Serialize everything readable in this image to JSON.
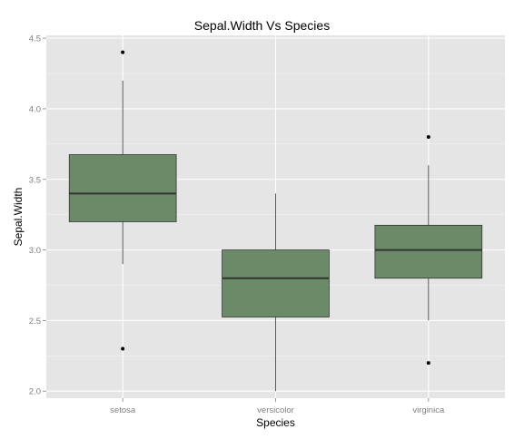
{
  "chart_data": {
    "type": "boxplot",
    "title": "Sepal.Width Vs Species",
    "xlabel": "Species",
    "ylabel": "Sepal.Width",
    "categories": [
      "setosa",
      "versicolor",
      "virginica"
    ],
    "ylim": [
      1.95,
      4.52
    ],
    "yticks": [
      2.0,
      2.5,
      3.0,
      3.5,
      4.0,
      4.5
    ],
    "ytick_labels": [
      "2.0",
      "2.5",
      "3.0",
      "3.5",
      "4.0",
      "4.5"
    ],
    "grid": true,
    "boxes": [
      {
        "category": "setosa",
        "lower_whisker": 2.9,
        "q1": 3.2,
        "median": 3.4,
        "q3": 3.675,
        "upper_whisker": 4.2,
        "outliers": [
          4.4,
          2.3
        ]
      },
      {
        "category": "versicolor",
        "lower_whisker": 2.0,
        "q1": 2.525,
        "median": 2.8,
        "q3": 3.0,
        "upper_whisker": 3.4,
        "outliers": []
      },
      {
        "category": "virginica",
        "lower_whisker": 2.5,
        "q1": 2.8,
        "median": 3.0,
        "q3": 3.175,
        "upper_whisker": 3.6,
        "outliers": [
          3.8,
          2.2
        ]
      }
    ],
    "colors": {
      "panel_background": "#e5e5e5",
      "grid_major": "#ffffff",
      "grid_minor": "#f2f2f2",
      "box_fill": "#6b8b68",
      "box_stroke": "#333333",
      "whisker": "#333333",
      "outlier": "#000000"
    }
  }
}
